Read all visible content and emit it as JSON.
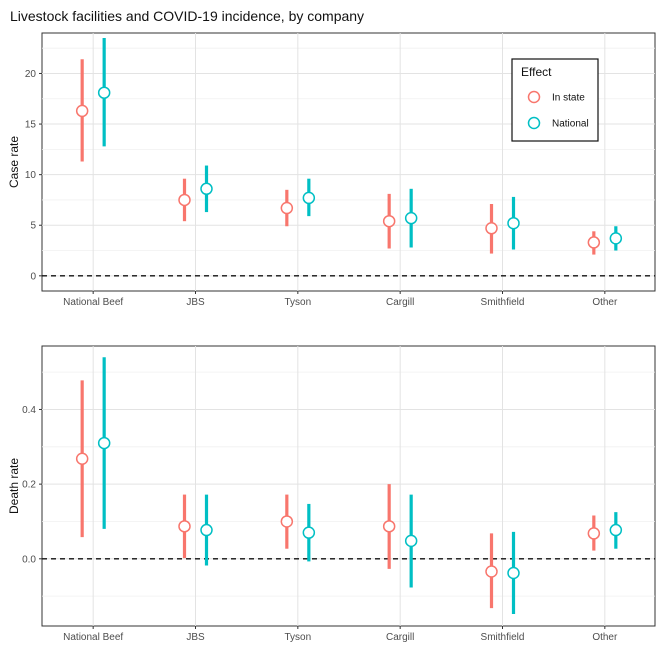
{
  "chart_title": "Livestock facilities and COVID-19 incidence, by company",
  "chart_data": [
    {
      "type": "scatter",
      "subtype": "point-range",
      "title": "",
      "xlabel": "",
      "ylabel": "Case rate",
      "ylim": [
        -1.5,
        24
      ],
      "yticks": [
        0,
        5,
        10,
        15,
        20
      ],
      "reference_line": 0,
      "grid": true,
      "categories": [
        "National Beef",
        "JBS",
        "Tyson",
        "Cargill",
        "Smithfield",
        "Other"
      ],
      "series": [
        {
          "name": "In state",
          "color": "#F8766D",
          "values": [
            16.3,
            7.5,
            6.7,
            5.4,
            4.7,
            3.3
          ],
          "lower": [
            11.3,
            5.4,
            4.9,
            2.7,
            2.2,
            2.1
          ],
          "upper": [
            21.4,
            9.6,
            8.5,
            8.1,
            7.1,
            4.4
          ]
        },
        {
          "name": "National",
          "color": "#00BFC4",
          "values": [
            18.1,
            8.6,
            7.7,
            5.7,
            5.2,
            3.7
          ],
          "lower": [
            12.8,
            6.3,
            5.9,
            2.8,
            2.6,
            2.5
          ],
          "upper": [
            23.5,
            10.9,
            9.6,
            8.6,
            7.8,
            4.9
          ]
        }
      ],
      "legend": {
        "title": "Effect",
        "position": "top-right"
      }
    },
    {
      "type": "scatter",
      "subtype": "point-range",
      "title": "",
      "xlabel": "",
      "ylabel": "Death rate",
      "ylim": [
        -0.18,
        0.57
      ],
      "yticks": [
        0.0,
        0.2,
        0.4
      ],
      "ytick_labels": [
        "0.0",
        "0.2",
        "0.4"
      ],
      "reference_line": 0,
      "grid": true,
      "categories": [
        "National Beef",
        "JBS",
        "Tyson",
        "Cargill",
        "Smithfield",
        "Other"
      ],
      "series": [
        {
          "name": "In state",
          "color": "#F8766D",
          "values": [
            0.268,
            0.087,
            0.1,
            0.087,
            -0.034,
            0.068
          ],
          "lower": [
            0.058,
            0.002,
            0.027,
            -0.027,
            -0.132,
            0.022
          ],
          "upper": [
            0.478,
            0.172,
            0.172,
            0.2,
            0.068,
            0.116
          ]
        },
        {
          "name": "National",
          "color": "#00BFC4",
          "values": [
            0.31,
            0.077,
            0.07,
            0.048,
            -0.038,
            0.077
          ],
          "lower": [
            0.08,
            -0.018,
            -0.007,
            -0.077,
            -0.148,
            0.027
          ],
          "upper": [
            0.54,
            0.172,
            0.147,
            0.172,
            0.072,
            0.125
          ]
        }
      ]
    }
  ]
}
